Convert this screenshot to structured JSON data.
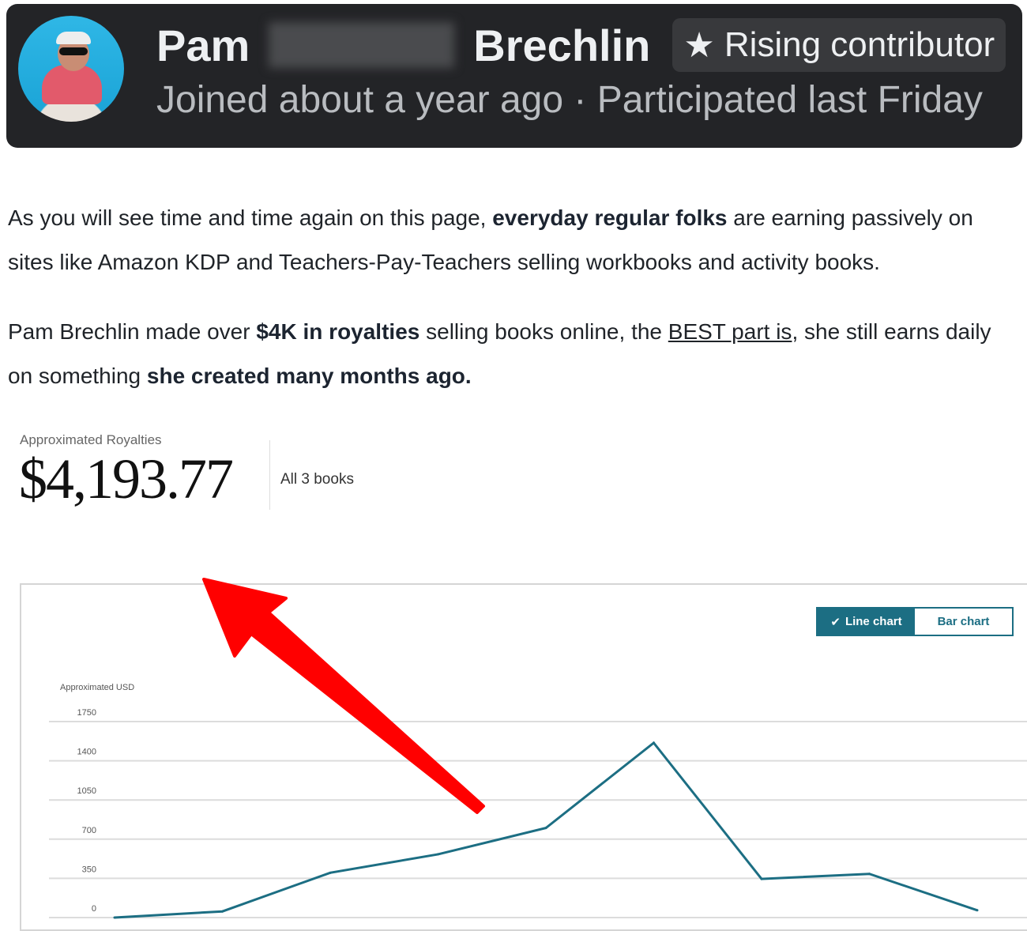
{
  "profile": {
    "first_name": "Pam",
    "last_name": "Brechlin",
    "badge": "Rising contributor",
    "badge_icon": "star-icon",
    "meta": "Joined about a year ago · Participated last Friday"
  },
  "article": {
    "p1": [
      {
        "t": "As you will see time and time again on this page, "
      },
      {
        "t": "everyday regular folks",
        "b": true
      },
      {
        "t": " are earning passively on sites like Amazon KDP and Teachers-Pay-Teachers selling workbooks and activity books."
      }
    ],
    "p2": [
      {
        "t": "Pam Brechlin made over "
      },
      {
        "t": "$4K in royalties",
        "b": true
      },
      {
        "t": " selling books online, the "
      },
      {
        "t": "BEST part is",
        "u": true
      },
      {
        "t": ", she still earns daily on something "
      },
      {
        "t": "she created many months ago.",
        "b": true
      }
    ]
  },
  "dashboard": {
    "kpi_label": "Approximated Royalties",
    "kpi_value": "$4,193.77",
    "kpi_scope": "All 3 books",
    "toggle": {
      "line": "Line chart",
      "bar": "Bar chart",
      "selected": "line"
    }
  },
  "annotation": {
    "arrow_color": "#ff0000"
  },
  "chart_data": {
    "type": "line",
    "ylabel": "Approximated USD",
    "yticks": [
      0,
      350,
      700,
      1050,
      1400,
      1750
    ],
    "ylim": [
      0,
      1750
    ],
    "grid": true,
    "color": "#1c6e83",
    "values": [
      0,
      55,
      400,
      565,
      800,
      1560,
      345,
      390,
      65
    ]
  }
}
